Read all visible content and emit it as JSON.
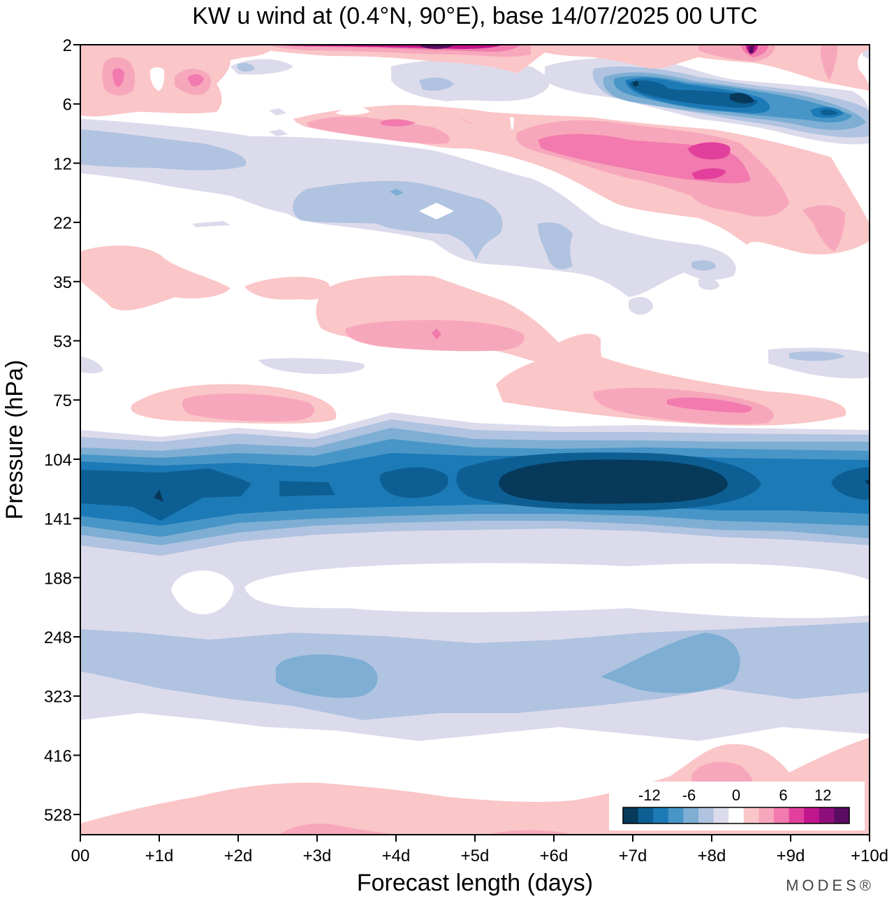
{
  "chart_data": {
    "type": "heatmap",
    "title": "KW u wind at (0.4°N, 90°E),  base 14/07/2025  00 UTC",
    "xlabel": "Forecast length (days)",
    "ylabel": "Pressure (hPa)",
    "x_ticks": [
      "00",
      "+1d",
      "+2d",
      "+3d",
      "+4d",
      "+5d",
      "+6d",
      "+7d",
      "+8d",
      "+9d",
      "+10d"
    ],
    "x_range_days": [
      0,
      10
    ],
    "y_ticks": [
      2,
      6,
      12,
      22,
      35,
      53,
      75,
      104,
      141,
      188,
      248,
      323,
      416,
      528
    ],
    "y_range_hPa": [
      2,
      600
    ],
    "y_scale": "log",
    "colorbar": {
      "tick_labels": [
        "-12",
        "-6",
        "0",
        "6",
        "12"
      ],
      "tick_values": [
        -12,
        -6,
        0,
        6,
        12
      ],
      "levels": [
        -16,
        -14,
        -12,
        -10,
        -8,
        -6,
        -4,
        -2,
        2,
        4,
        6,
        8,
        10,
        12,
        14,
        16
      ],
      "colors": [
        "#07395a",
        "#0d5f93",
        "#1c7ab7",
        "#4896c7",
        "#7eaed3",
        "#b0c3e0",
        "#dcdbec",
        "#ffffff",
        "#fac6c8",
        "#f7a7bb",
        "#f27aae",
        "#e2409c",
        "#c1168d",
        "#8e0e7c",
        "#5a0c63"
      ]
    },
    "features": [
      {
        "name": "upper easterly core",
        "x_days": [
          5.5,
          8.2
        ],
        "p_hPa": [
          105,
          135
        ],
        "value": -16
      },
      {
        "name": "upper easterly band",
        "x_days": [
          0,
          10
        ],
        "p_hPa": [
          95,
          150
        ],
        "value": -8
      },
      {
        "name": "upper troposphere easterlies",
        "x_days": [
          0,
          10
        ],
        "p_hPa": [
          240,
          360
        ],
        "value": -5
      },
      {
        "name": "stratospheric westerly layer",
        "x_days": [
          3,
          10
        ],
        "p_hPa": [
          40,
          90
        ],
        "value": 6
      },
      {
        "name": "stratospheric westerly max",
        "x_days": [
          7,
          8.5
        ],
        "p_hPa": [
          8,
          16
        ],
        "value": 10
      },
      {
        "name": "upper stratosphere easterly max",
        "x_days": [
          7.5,
          9.5
        ],
        "p_hPa": [
          4,
          8
        ],
        "value": -14
      }
    ]
  },
  "branding": {
    "logo_text": "MODES®"
  }
}
